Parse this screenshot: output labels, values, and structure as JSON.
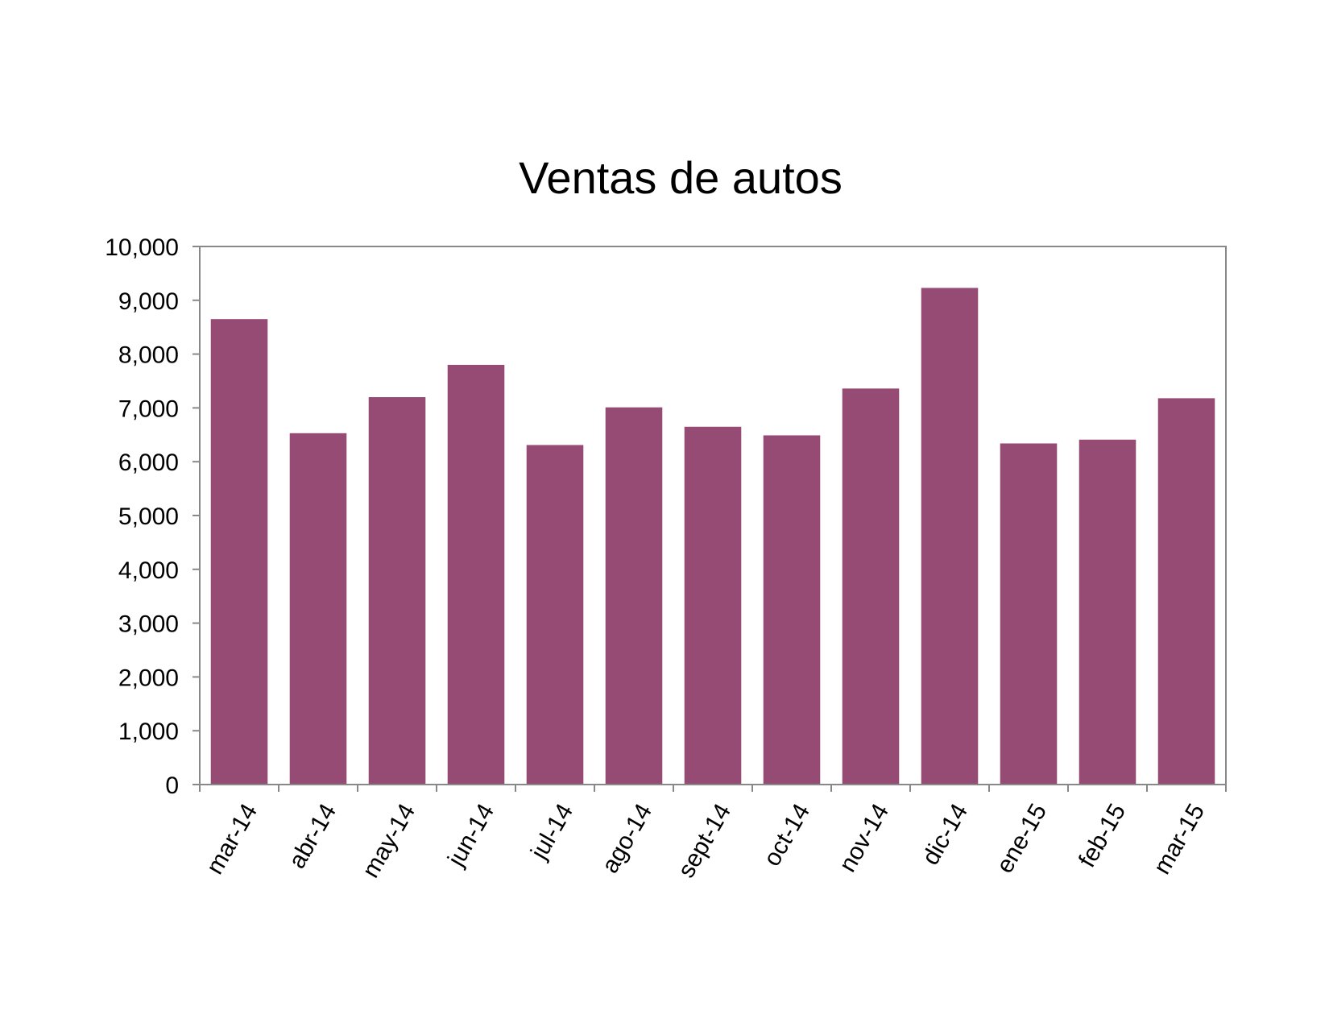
{
  "chart_data": {
    "type": "bar",
    "title": "Ventas de autos",
    "xlabel": "",
    "ylabel": "",
    "categories": [
      "mar-14",
      "abr-14",
      "may-14",
      "jun-14",
      "jul-14",
      "ago-14",
      "sept-14",
      "oct-14",
      "nov-14",
      "dic-14",
      "ene-15",
      "feb-15",
      "mar-15"
    ],
    "values": [
      8650,
      6530,
      7200,
      7800,
      6310,
      7010,
      6650,
      6490,
      7360,
      9230,
      6340,
      6410,
      7180
    ],
    "ylim": [
      0,
      10000
    ],
    "yticks": [
      "0",
      "1,000",
      "2,000",
      "3,000",
      "4,000",
      "5,000",
      "6,000",
      "7,000",
      "8,000",
      "9,000",
      "10,000"
    ],
    "grid": false,
    "legend": "none",
    "colors": {
      "bar": "#964B75",
      "axis": "#888888",
      "frame": "#888888"
    }
  }
}
